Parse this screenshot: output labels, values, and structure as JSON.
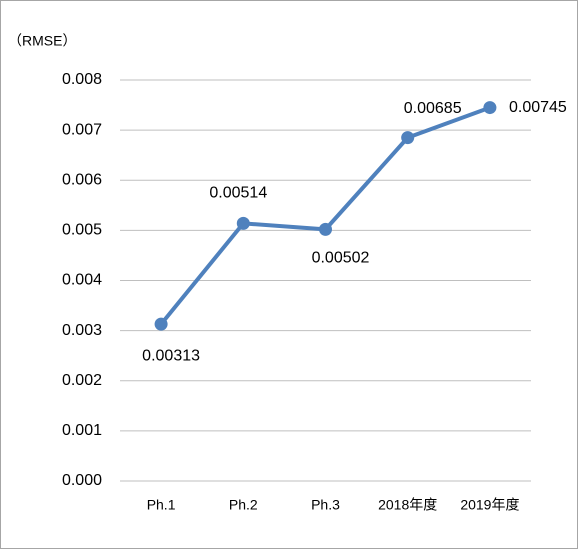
{
  "chart_data": {
    "type": "line",
    "y_label": "（RMSE）",
    "categories": [
      "Ph.1",
      "Ph.2",
      "Ph.3",
      "2018年度",
      "2019年度"
    ],
    "series": [
      {
        "name": "RMSE",
        "color": "#4f81bd",
        "values": [
          0.00313,
          0.00514,
          0.00502,
          0.00685,
          0.00745
        ]
      }
    ],
    "ylim": [
      0,
      0.008
    ],
    "yticks": [
      {
        "value": 0,
        "label": "0.000"
      },
      0.001,
      0.002,
      0.003,
      0.004,
      0.005,
      0.006,
      0.007,
      0.008
    ],
    "grid": true
  }
}
